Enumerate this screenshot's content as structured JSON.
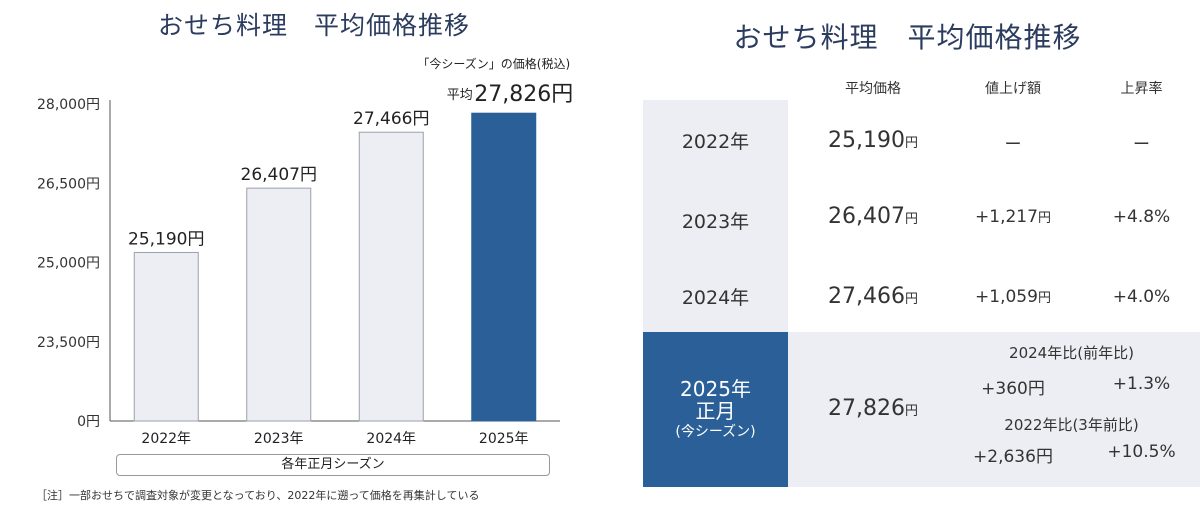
{
  "left_title": "おせち料理　平均価格推移",
  "right_title": "おせち料理　平均価格推移",
  "chart_data": {
    "type": "bar",
    "categories": [
      "2022年",
      "2023年",
      "2024年",
      "2025年"
    ],
    "values": [
      25190,
      26407,
      27466,
      27826
    ],
    "value_labels": [
      "25,190円",
      "26,407円",
      "27,466円",
      "27,826円"
    ],
    "highlight_index": 3,
    "highlight_caption": "「今シーズン」の価格(税込)",
    "highlight_prefix": "平均",
    "y_ticks": [
      "28,000円",
      "26,500円",
      "25,000円",
      "23,500円",
      "0円"
    ],
    "y_tick_values": [
      28000,
      26500,
      25000,
      23500,
      22000
    ],
    "ylim": [
      22000,
      28000
    ],
    "axis_break": "0円 shown at baseline",
    "xlabel_box": "各年正月シーズン",
    "colors": {
      "bar": "#eceef3",
      "bar_border": "#9aa0aa",
      "highlight": "#2a5f98"
    }
  },
  "note": "［注］一部おせちで調査対象が変更となっており、2022年に遡って価格を再集計している",
  "table": {
    "headers": [
      "平均価格",
      "値上げ額",
      "上昇率"
    ],
    "rows": [
      {
        "year": "2022年",
        "price": "25,190",
        "unit": "円",
        "increase": "ー",
        "increase_unit": "",
        "rate": "ー"
      },
      {
        "year": "2023年",
        "price": "26,407",
        "unit": "円",
        "increase": "+1,217",
        "increase_unit": "円",
        "rate": "+4.8%"
      },
      {
        "year": "2024年",
        "price": "27,466",
        "unit": "円",
        "increase": "+1,059",
        "increase_unit": "円",
        "rate": "+4.0%"
      }
    ],
    "current": {
      "year_line1": "2025年",
      "year_line2": "正月",
      "year_line3": "(今シーズン)",
      "price": "27,826",
      "unit": "円",
      "comp1_label": "2024年比(前年比)",
      "comp1_increase": "+360円",
      "comp1_rate": "+1.3%",
      "comp2_label": "2022年比(3年前比)",
      "comp2_increase": "+2,636円",
      "comp2_rate": "+10.5%"
    }
  }
}
